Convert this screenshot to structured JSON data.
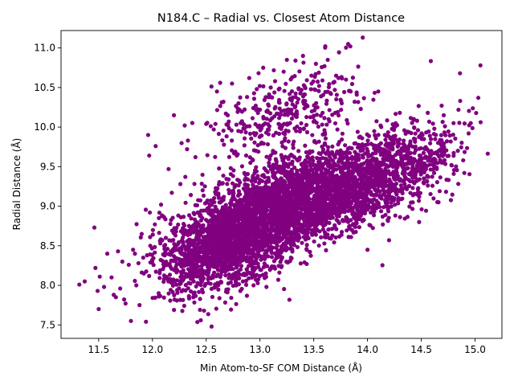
{
  "chart_data": {
    "type": "scatter",
    "title": "N184.C – Radial vs. Closest Atom Distance",
    "xlabel": "Min Atom-to-SF COM Distance (Å)",
    "ylabel": "Radial Distance (Å)",
    "xlim": [
      11.15,
      15.25
    ],
    "ylim": [
      7.33,
      11.22
    ],
    "xticks": [
      11.5,
      12.0,
      12.5,
      13.0,
      13.5,
      14.0,
      14.5,
      15.0
    ],
    "xtick_labels": [
      "11.5",
      "12.0",
      "12.5",
      "13.0",
      "13.5",
      "14.0",
      "14.5",
      "15.0"
    ],
    "yticks": [
      7.5,
      8.0,
      8.5,
      9.0,
      9.5,
      10.0,
      10.5,
      11.0
    ],
    "ytick_labels": [
      "7.5",
      "8.0",
      "8.5",
      "9.0",
      "9.5",
      "10.0",
      "10.5",
      "11.0"
    ],
    "grid": false,
    "legend": "none",
    "marker_color": "#800080",
    "points": [
      [
        11.32,
        8.01
      ],
      [
        11.37,
        8.05
      ],
      [
        11.46,
        8.73
      ],
      [
        11.47,
        8.22
      ],
      [
        11.49,
        7.93
      ],
      [
        11.5,
        7.7
      ],
      [
        11.51,
        8.11
      ],
      [
        11.55,
        7.98
      ],
      [
        11.58,
        8.4
      ],
      [
        11.62,
        8.1
      ],
      [
        11.64,
        7.88
      ],
      [
        11.66,
        7.85
      ],
      [
        11.68,
        8.43
      ],
      [
        11.7,
        7.96
      ],
      [
        11.72,
        8.3
      ],
      [
        11.75,
        7.77
      ],
      [
        11.78,
        8.26
      ],
      [
        11.8,
        7.55
      ],
      [
        11.82,
        8.45
      ],
      [
        11.85,
        8.0
      ],
      [
        11.87,
        8.28
      ],
      [
        11.88,
        7.75
      ],
      [
        11.9,
        8.65
      ],
      [
        11.92,
        8.15
      ],
      [
        11.94,
        7.54
      ],
      [
        11.95,
        8.38
      ],
      [
        11.96,
        9.9
      ],
      [
        11.97,
        9.64
      ],
      [
        11.98,
        8.5
      ],
      [
        12.03,
        9.76
      ],
      [
        12.06,
        8.85
      ],
      [
        12.08,
        9.02
      ],
      [
        12.12,
        8.27
      ],
      [
        12.15,
        9.47
      ],
      [
        12.18,
        9.17
      ],
      [
        12.2,
        10.15
      ],
      [
        12.22,
        8.68
      ],
      [
        12.26,
        9.28
      ],
      [
        12.28,
        8.11
      ],
      [
        12.3,
        10.02
      ],
      [
        12.33,
        9.83
      ],
      [
        12.35,
        8.43
      ],
      [
        12.38,
        7.85
      ],
      [
        12.4,
        9.62
      ],
      [
        12.42,
        8.92
      ],
      [
        12.45,
        8.17
      ],
      [
        12.48,
        7.68
      ],
      [
        12.5,
        10.04
      ],
      [
        12.55,
        7.48
      ],
      [
        12.57,
        9.97
      ],
      [
        12.6,
        10.45
      ],
      [
        12.63,
        10.56
      ],
      [
        12.66,
        10.32
      ],
      [
        12.7,
        10.15
      ],
      [
        12.74,
        10.55
      ],
      [
        12.78,
        8.0
      ],
      [
        12.8,
        10.3
      ],
      [
        12.82,
        10.05
      ],
      [
        12.88,
        10.38
      ],
      [
        12.9,
        10.62
      ],
      [
        12.94,
        8.0
      ],
      [
        12.97,
        10.48
      ],
      [
        13.0,
        10.22
      ],
      [
        13.03,
        10.75
      ],
      [
        13.06,
        7.98
      ],
      [
        13.1,
        10.5
      ],
      [
        13.14,
        10.58
      ],
      [
        13.17,
        8.07
      ],
      [
        13.2,
        10.2
      ],
      [
        13.22,
        10.7
      ],
      [
        13.25,
        10.85
      ],
      [
        13.28,
        10.35
      ],
      [
        13.3,
        10.63
      ],
      [
        13.33,
        10.84
      ],
      [
        13.36,
        10.48
      ],
      [
        13.4,
        10.9
      ],
      [
        13.44,
        10.27
      ],
      [
        13.48,
        10.55
      ],
      [
        13.52,
        10.8
      ],
      [
        13.55,
        10.52
      ],
      [
        13.6,
        10.77
      ],
      [
        13.63,
        10.85
      ],
      [
        13.66,
        10.42
      ],
      [
        13.7,
        10.18
      ],
      [
        13.73,
        10.62
      ],
      [
        13.76,
        10.3
      ],
      [
        13.8,
        10.6
      ],
      [
        13.82,
        11.05
      ],
      [
        13.84,
        11.02
      ],
      [
        13.88,
        10.32
      ],
      [
        14.0,
        8.45
      ],
      [
        14.1,
        10.45
      ],
      [
        14.2,
        8.57
      ],
      [
        14.3,
        10.18
      ],
      [
        14.4,
        9.55
      ],
      [
        14.48,
        8.8
      ],
      [
        14.52,
        9.3
      ],
      [
        14.56,
        10.18
      ],
      [
        14.58,
        9.89
      ],
      [
        14.62,
        9.6
      ],
      [
        14.66,
        9.05
      ],
      [
        14.7,
        9.75
      ],
      [
        14.72,
        10.01
      ],
      [
        14.78,
        9.52
      ],
      [
        14.8,
        10.05
      ],
      [
        14.84,
        9.7
      ],
      [
        14.86,
        10.68
      ],
      [
        14.9,
        9.42
      ],
      [
        14.94,
        9.92
      ],
      [
        14.96,
        10.05
      ],
      [
        15.03,
        10.37
      ],
      [
        15.05,
        10.78
      ]
    ],
    "dense_clusters": [
      {
        "cx": 12.78,
        "cy": 8.6,
        "sx": 0.32,
        "sy": 0.3,
        "rho": 0.4,
        "n": 1400
      },
      {
        "cx": 13.22,
        "cy": 9.05,
        "sx": 0.36,
        "sy": 0.32,
        "rho": 0.5,
        "n": 1700
      },
      {
        "cx": 13.85,
        "cy": 9.2,
        "sx": 0.34,
        "sy": 0.28,
        "rho": 0.5,
        "n": 1100
      },
      {
        "cx": 14.3,
        "cy": 9.55,
        "sx": 0.28,
        "sy": 0.28,
        "rho": 0.4,
        "n": 450
      },
      {
        "cx": 12.5,
        "cy": 8.35,
        "sx": 0.25,
        "sy": 0.25,
        "rho": 0.3,
        "n": 400
      },
      {
        "cx": 13.25,
        "cy": 10.15,
        "sx": 0.35,
        "sy": 0.28,
        "rho": 0.45,
        "n": 320
      }
    ]
  }
}
